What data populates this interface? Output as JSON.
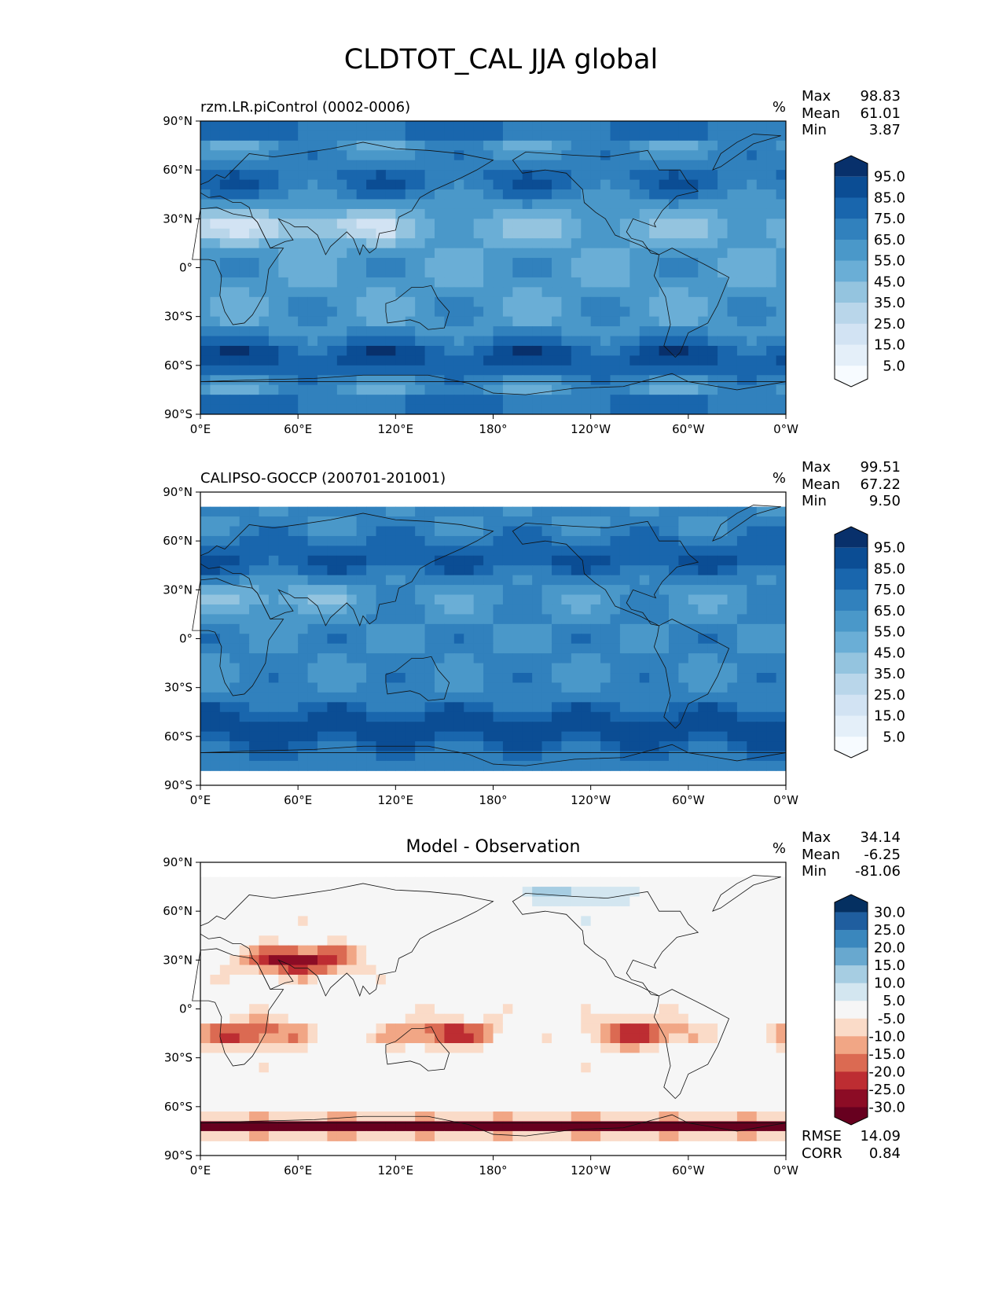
{
  "figure": {
    "title": "CLDTOT_CAL JJA global"
  },
  "chart_data": [
    {
      "type": "heatmap",
      "title": "rzm.LR.piControl (0002-0006)",
      "units": "%",
      "x_ticks": [
        "0°E",
        "60°E",
        "120°E",
        "180°",
        "120°W",
        "60°W",
        "0°W"
      ],
      "y_ticks": [
        "90°N",
        "60°N",
        "30°N",
        "0°",
        "30°S",
        "60°S",
        "90°S"
      ],
      "xlim": [
        0,
        360
      ],
      "ylim": [
        -90,
        90
      ],
      "stats": {
        "max_label": "Max",
        "max": "98.83",
        "mean_label": "Mean",
        "mean": "61.01",
        "min_label": "Min",
        "min": "3.87"
      },
      "colorbar": {
        "labels": [
          "95.0",
          "85.0",
          "75.0",
          "65.0",
          "55.0",
          "45.0",
          "35.0",
          "25.0",
          "15.0",
          "5.0"
        ],
        "colors": [
          "#08306b",
          "#0b4d94",
          "#1966ad",
          "#3181bd",
          "#4a98c9",
          "#6aaed6",
          "#94c4df",
          "#b9d6ea",
          "#d2e3f3",
          "#e4eff9",
          "#f7fbff"
        ]
      }
    },
    {
      "type": "heatmap",
      "title": "CALIPSO-GOCCP (200701-201001)",
      "units": "%",
      "x_ticks": [
        "0°E",
        "60°E",
        "120°E",
        "180°",
        "120°W",
        "60°W",
        "0°W"
      ],
      "y_ticks": [
        "90°N",
        "60°N",
        "30°N",
        "0°",
        "30°S",
        "60°S",
        "90°S"
      ],
      "xlim": [
        0,
        360
      ],
      "ylim": [
        -90,
        90
      ],
      "stats": {
        "max_label": "Max",
        "max": "99.51",
        "mean_label": "Mean",
        "mean": "67.22",
        "min_label": "Min",
        "min": "9.50"
      },
      "colorbar": {
        "labels": [
          "95.0",
          "85.0",
          "75.0",
          "65.0",
          "55.0",
          "45.0",
          "35.0",
          "25.0",
          "15.0",
          "5.0"
        ],
        "colors": [
          "#08306b",
          "#0b4d94",
          "#1966ad",
          "#3181bd",
          "#4a98c9",
          "#6aaed6",
          "#94c4df",
          "#b9d6ea",
          "#d2e3f3",
          "#e4eff9",
          "#f7fbff"
        ]
      }
    },
    {
      "type": "heatmap",
      "title": "Model - Observation",
      "units": "%",
      "x_ticks": [
        "0°E",
        "60°E",
        "120°E",
        "180°",
        "120°W",
        "60°W",
        "0°W"
      ],
      "y_ticks": [
        "90°N",
        "60°N",
        "30°N",
        "0°",
        "30°S",
        "60°S",
        "90°S"
      ],
      "xlim": [
        0,
        360
      ],
      "ylim": [
        -90,
        90
      ],
      "stats": {
        "max_label": "Max",
        "max": "34.14",
        "mean_label": "Mean",
        "mean": "-6.25",
        "min_label": "Min",
        "min": "-81.06"
      },
      "extra_stats": {
        "rmse_label": "RMSE",
        "rmse": "14.09",
        "corr_label": "CORR",
        "corr": "0.84"
      },
      "colorbar": {
        "labels": [
          "30.0",
          "25.0",
          "20.0",
          "15.0",
          "10.0",
          "5.0",
          "-5.0",
          "-10.0",
          "-15.0",
          "-20.0",
          "-25.0",
          "-30.0"
        ],
        "colors": [
          "#053061",
          "#1f5e9f",
          "#3a87bd",
          "#68a8cf",
          "#a6cde2",
          "#d3e6f0",
          "#f6f6f6",
          "#fadbc8",
          "#f1a685",
          "#db6a52",
          "#bd2d32",
          "#8c0c25",
          "#67001f"
        ]
      }
    }
  ]
}
